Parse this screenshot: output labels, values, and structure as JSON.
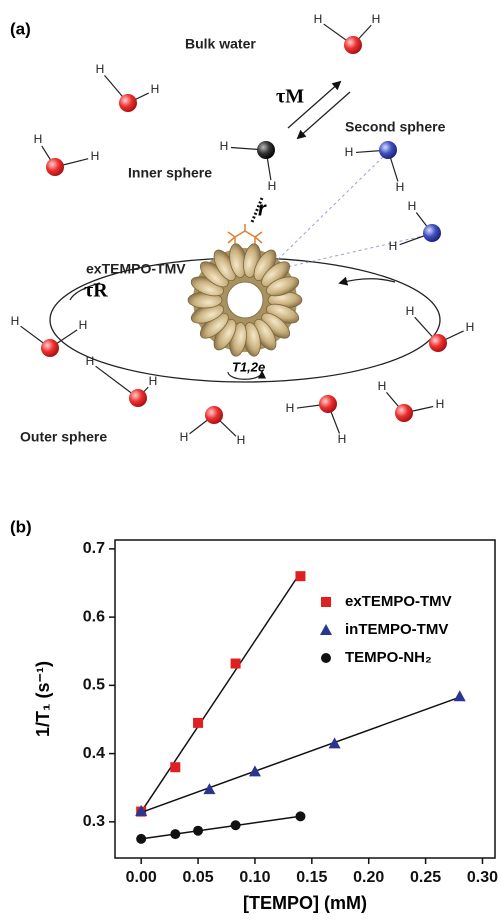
{
  "panels": {
    "a": "(a)",
    "b": "(b)"
  },
  "diagram": {
    "bulk": "Bulk water",
    "second": "Second sphere",
    "inner": "Inner sphere",
    "complex": "exTEMPO-TMV",
    "outer": "Outer sphere",
    "tau_m": "τM",
    "tau_r": "τR",
    "distance": "r",
    "relax": "T1,2e",
    "hydrogen": "H"
  },
  "chart_data": {
    "type": "scatter",
    "xlabel": "[TEMPO] (mM)",
    "ylabel": "1/T₁ (s⁻¹)",
    "xlim": [
      -0.023,
      0.311
    ],
    "ylim": [
      0.247,
      0.713
    ],
    "xticks": [
      {
        "value": 0,
        "label": "0.00"
      },
      {
        "value": 0.05,
        "label": "0.05"
      },
      {
        "value": 0.1,
        "label": "0.10"
      },
      {
        "value": 0.15,
        "label": "0.15"
      },
      {
        "value": 0.2,
        "label": "0.20"
      },
      {
        "value": 0.25,
        "label": "0.25"
      },
      {
        "value": 0.3,
        "label": "0.30"
      }
    ],
    "yticks": [
      0.3,
      0.4,
      0.5,
      0.6,
      0.7
    ],
    "series": [
      {
        "name": "exTEMPO-TMV",
        "color": "#e02020",
        "marker": "square",
        "x": [
          0,
          0.03,
          0.05,
          0.083,
          0.14
        ],
        "values": [
          0.315,
          0.38,
          0.445,
          0.532,
          0.66
        ]
      },
      {
        "name": "inTEMPO-TMV",
        "color": "#2a3590",
        "marker": "triangle",
        "x": [
          0,
          0.06,
          0.1,
          0.17,
          0.28
        ],
        "values": [
          0.316,
          0.348,
          0.374,
          0.415,
          0.484
        ]
      },
      {
        "name": "TEMPO-NH₂",
        "color": "#111111",
        "marker": "circle",
        "x": [
          0,
          0.03,
          0.05,
          0.083,
          0.14
        ],
        "values": [
          0.275,
          0.282,
          0.287,
          0.295,
          0.308
        ]
      }
    ]
  }
}
